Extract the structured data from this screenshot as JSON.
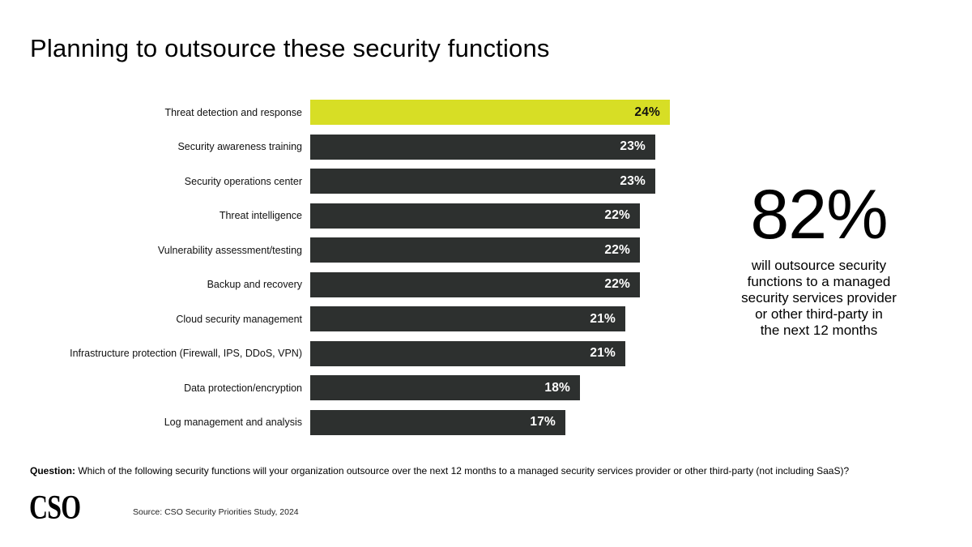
{
  "title": "Planning to outsource these security functions",
  "chart_data": {
    "type": "bar",
    "orientation": "horizontal",
    "categories": [
      "Threat detection and response",
      "Security awareness training",
      "Security operations center",
      "Threat intelligence",
      "Vulnerability assessment/testing",
      "Backup and recovery",
      "Cloud security management",
      "Infrastructure protection (Firewall, IPS, DDoS, VPN)",
      "Data protection/encryption",
      "Log management and analysis"
    ],
    "values": [
      24,
      23,
      23,
      22,
      22,
      22,
      21,
      21,
      18,
      17
    ],
    "value_suffix": "%",
    "xlim": [
      0,
      24
    ],
    "highlight_index": 0,
    "grid": false,
    "legend": false,
    "colors": {
      "bar": "#2d302f",
      "highlight": "#d7de25",
      "value_on_bar": "#ffffff",
      "value_on_highlight": "#111111"
    }
  },
  "callout": {
    "value": "82%",
    "lines": [
      "will outsource security",
      "functions to a managed",
      "security services provider",
      "or other third-party in",
      "the next 12 months"
    ]
  },
  "question": {
    "label": "Question:",
    "text": " Which of the following security functions will your organization outsource over the next 12 months to a managed security services provider or other third-party (not including SaaS)?"
  },
  "footer": {
    "logo": "CSO",
    "source": "Source: CSO Security Priorities Study, 2024"
  }
}
